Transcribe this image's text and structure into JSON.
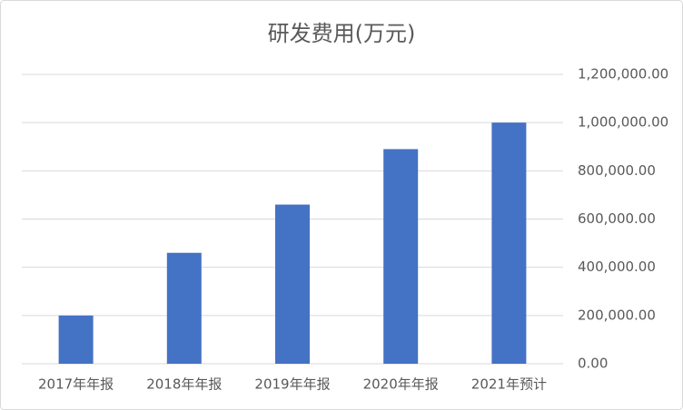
{
  "chart_data": {
    "type": "bar",
    "title": "研发费用(万元)",
    "categories": [
      "2017年年报",
      "2018年年报",
      "2019年年报",
      "2020年年报",
      "2021年预计"
    ],
    "values": [
      200000,
      460000,
      660000,
      890000,
      1000000
    ],
    "color": "#4472c4",
    "ylim": [
      0,
      1200000
    ],
    "yticks": [
      {
        "value": 0,
        "label": "0.00"
      },
      {
        "value": 200000,
        "label": "200,000.00"
      },
      {
        "value": 400000,
        "label": "400,000.00"
      },
      {
        "value": 600000,
        "label": "600,000.00"
      },
      {
        "value": 800000,
        "label": "800,000.00"
      },
      {
        "value": 1000000,
        "label": "1,000,000.00"
      },
      {
        "value": 1200000,
        "label": "1,200,000.00"
      }
    ],
    "grid": true
  }
}
